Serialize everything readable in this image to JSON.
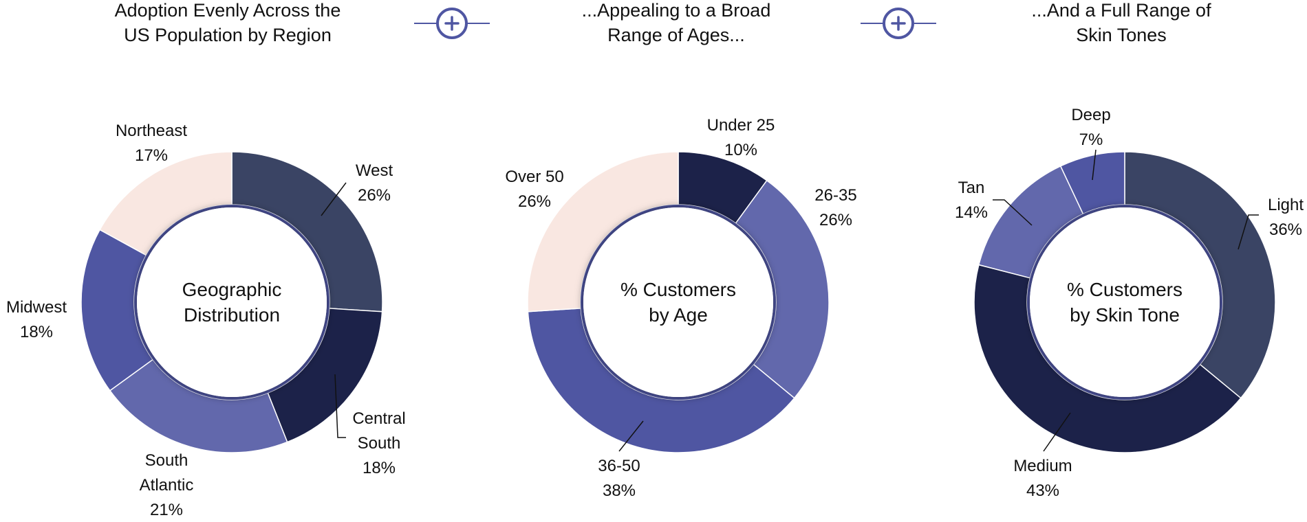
{
  "headers": [
    {
      "lines": [
        "Adoption Evenly Across the",
        "US Population by Region"
      ]
    },
    {
      "lines": [
        "...Appealing to a Broad",
        "Range of Ages..."
      ]
    },
    {
      "lines": [
        "...And a Full Range of",
        "Skin Tones"
      ]
    }
  ],
  "connector_icon": "plus-circle-icon",
  "colors": {
    "peach": "#F9E7E1",
    "slate": "#3A4464",
    "navy": "#1C2249",
    "periwinkle": "#6268AC",
    "indigo": "#4F56A2",
    "ring": "#4F56A2",
    "accent": "#4F56A2"
  },
  "chart_data": [
    {
      "type": "pie",
      "donut": true,
      "center_label": [
        "Geographic",
        "Distribution"
      ],
      "slices": [
        {
          "label": [
            "West"
          ],
          "value": 26,
          "value_label": "26%",
          "color": "#3A4464"
        },
        {
          "label": [
            "Central",
            "South"
          ],
          "value": 18,
          "value_label": "18%",
          "color": "#1C2249"
        },
        {
          "label": [
            "South",
            "Atlantic"
          ],
          "value": 21,
          "value_label": "21%",
          "color": "#6268AC"
        },
        {
          "label": [
            "Midwest"
          ],
          "value": 18,
          "value_label": "18%",
          "color": "#4F56A2"
        },
        {
          "label": [
            "Northeast"
          ],
          "value": 17,
          "value_label": "17%",
          "color": "#F9E7E1"
        }
      ]
    },
    {
      "type": "pie",
      "donut": true,
      "center_label": [
        "% Customers",
        "by Age"
      ],
      "slices": [
        {
          "label": [
            "Under 25"
          ],
          "value": 10,
          "value_label": "10%",
          "color": "#1C2249"
        },
        {
          "label": [
            "26-35"
          ],
          "value": 26,
          "value_label": "26%",
          "color": "#6268AC"
        },
        {
          "label": [
            "36-50"
          ],
          "value": 38,
          "value_label": "38%",
          "color": "#4F56A2"
        },
        {
          "label": [
            "Over 50"
          ],
          "value": 26,
          "value_label": "26%",
          "color": "#F9E7E1"
        }
      ]
    },
    {
      "type": "pie",
      "donut": true,
      "center_label": [
        "% Customers",
        "by Skin Tone"
      ],
      "slices": [
        {
          "label": [
            "Light"
          ],
          "value": 36,
          "value_label": "36%",
          "color": "#3A4464"
        },
        {
          "label": [
            "Medium"
          ],
          "value": 43,
          "value_label": "43%",
          "color": "#1C2249"
        },
        {
          "label": [
            "Tan"
          ],
          "value": 14,
          "value_label": "14%",
          "color": "#6268AC"
        },
        {
          "label": [
            "Deep"
          ],
          "value": 7,
          "value_label": "7%",
          "color": "#4F56A2"
        }
      ]
    }
  ]
}
